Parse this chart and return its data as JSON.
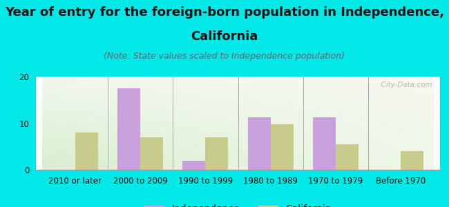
{
  "title_line1": "Year of entry for the foreign-born population in Independence,",
  "title_line2": "California",
  "subtitle": "(Note: State values scaled to Independence population)",
  "categories": [
    "2010 or later",
    "2000 to 2009",
    "1990 to 1999",
    "1980 to 1989",
    "1970 to 1979",
    "Before 1970"
  ],
  "independence_values": [
    0,
    17.5,
    2.0,
    11.2,
    11.2,
    0
  ],
  "california_values": [
    8.0,
    7.0,
    7.0,
    9.8,
    5.5,
    4.0
  ],
  "independence_color": "#c9a0dc",
  "california_color": "#c8cc8a",
  "background_color": "#00e8e8",
  "plot_bg_top_left": "#dff0d8",
  "plot_bg_bottom_right": "#f8f8f0",
  "ylim": [
    0,
    20
  ],
  "yticks": [
    0,
    10,
    20
  ],
  "bar_width": 0.35,
  "watermark": "  City-Data.com",
  "title_fontsize": 13,
  "subtitle_fontsize": 9,
  "legend_fontsize": 10,
  "tick_fontsize": 8.5
}
